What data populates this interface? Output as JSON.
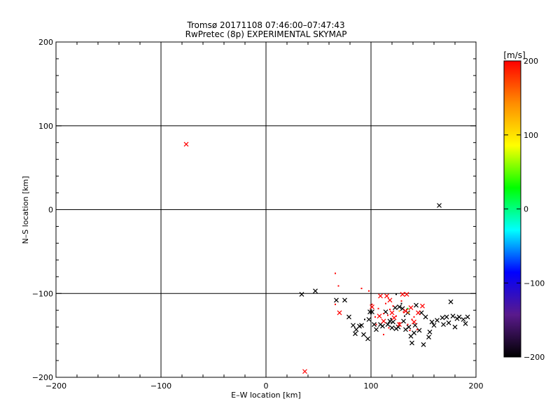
{
  "chart_data": {
    "type": "scatter",
    "title": "Tromsø 20171108 07:46:00–07:47:43",
    "subtitle": "RwPretec (8p) EXPERIMENTAL SKYMAP",
    "xlabel": "E–W location [km]",
    "ylabel": "N–S location [km]",
    "xlim": [
      -200,
      200
    ],
    "ylim": [
      -200,
      200
    ],
    "x_ticks": [
      -200,
      -100,
      0,
      100,
      200
    ],
    "y_ticks": [
      -200,
      -100,
      0,
      100,
      200
    ],
    "x_tick_labels": [
      "−200",
      "−100",
      "0",
      "100",
      "200"
    ],
    "y_tick_labels": [
      "−200",
      "−100",
      "0",
      "100",
      "200"
    ],
    "grid": true,
    "colorbar": {
      "label": "[m/s]",
      "range": [
        -200,
        200
      ],
      "ticks": [
        200,
        100,
        0,
        -100,
        -200
      ],
      "tick_labels": [
        "200",
        "100",
        "0",
        "−100",
        "−200"
      ],
      "colors": [
        "#000000",
        "#5a1a8c",
        "#0000ff",
        "#00ffff",
        "#00ff00",
        "#ffff00",
        "#ff8c00",
        "#ff0000"
      ]
    },
    "series": [
      {
        "marker": "x",
        "color": "#000000",
        "points": [
          [
            165,
            5
          ],
          [
            34,
            -101
          ],
          [
            47,
            -97
          ],
          [
            67,
            -108
          ],
          [
            75,
            -108
          ],
          [
            79,
            -128
          ],
          [
            83,
            -138
          ],
          [
            85,
            -148
          ],
          [
            86,
            -143
          ],
          [
            89,
            -139
          ],
          [
            91,
            -138
          ],
          [
            93,
            -149
          ],
          [
            97,
            -154
          ],
          [
            98,
            -131
          ],
          [
            99,
            -122
          ],
          [
            101,
            -122
          ],
          [
            103,
            -137
          ],
          [
            105,
            -143
          ],
          [
            109,
            -137
          ],
          [
            111,
            -139
          ],
          [
            114,
            -122
          ],
          [
            116,
            -137
          ],
          [
            118,
            -133
          ],
          [
            120,
            -141
          ],
          [
            121,
            -134
          ],
          [
            123,
            -117
          ],
          [
            124,
            -142
          ],
          [
            126,
            -140
          ],
          [
            127,
            -116
          ],
          [
            130,
            -118
          ],
          [
            131,
            -133
          ],
          [
            133,
            -143
          ],
          [
            135,
            -123
          ],
          [
            136,
            -140
          ],
          [
            138,
            -151
          ],
          [
            139,
            -159
          ],
          [
            141,
            -147
          ],
          [
            142,
            -138
          ],
          [
            143,
            -114
          ],
          [
            146,
            -144
          ],
          [
            148,
            -123
          ],
          [
            150,
            -161
          ],
          [
            152,
            -128
          ],
          [
            155,
            -152
          ],
          [
            156,
            -146
          ],
          [
            158,
            -134
          ],
          [
            160,
            -138
          ],
          [
            163,
            -132
          ],
          [
            168,
            -129
          ],
          [
            169,
            -137
          ],
          [
            172,
            -128
          ],
          [
            174,
            -135
          ],
          [
            176,
            -110
          ],
          [
            178,
            -127
          ],
          [
            180,
            -140
          ],
          [
            182,
            -130
          ],
          [
            184,
            -128
          ],
          [
            188,
            -131
          ],
          [
            190,
            -136
          ],
          [
            192,
            -128
          ]
        ]
      },
      {
        "marker": "x",
        "color": "#ff0000",
        "points": [
          [
            -76,
            78
          ],
          [
            70,
            -123
          ],
          [
            101,
            -116
          ],
          [
            108,
            -127
          ],
          [
            109,
            -103
          ],
          [
            112,
            -133
          ],
          [
            115,
            -103
          ],
          [
            118,
            -108
          ],
          [
            120,
            -123
          ],
          [
            122,
            -129
          ],
          [
            127,
            -137
          ],
          [
            130,
            -101
          ],
          [
            133,
            -121
          ],
          [
            134,
            -101
          ],
          [
            138,
            -117
          ],
          [
            141,
            -134
          ],
          [
            145,
            -123
          ],
          [
            149,
            -115
          ],
          [
            37,
            -193
          ]
        ]
      },
      {
        "marker": "dot",
        "color": "#ff0000",
        "points": [
          [
            66,
            -76
          ],
          [
            69,
            -91
          ],
          [
            66,
            -113
          ],
          [
            91,
            -94
          ],
          [
            98,
            -97
          ],
          [
            101,
            -113
          ],
          [
            104,
            -128
          ],
          [
            107,
            -118
          ],
          [
            112,
            -124
          ],
          [
            114,
            -112
          ],
          [
            116,
            -126
          ],
          [
            118,
            -119
          ],
          [
            121,
            -115
          ],
          [
            124,
            -127
          ],
          [
            127,
            -135
          ],
          [
            129,
            -109
          ],
          [
            131,
            -122
          ],
          [
            134,
            -119
          ],
          [
            135,
            -137
          ],
          [
            137,
            -144
          ],
          [
            139,
            -131
          ],
          [
            141,
            -128
          ],
          [
            144,
            -143
          ],
          [
            112,
            -149
          ],
          [
            105,
            -137
          ],
          [
            117,
            -141
          ]
        ]
      },
      {
        "marker": "dot",
        "color": "#ffa500",
        "points": [
          [
            127,
            -121
          ],
          [
            136,
            -123
          ]
        ]
      },
      {
        "marker": "dot",
        "color": "#00c000",
        "points": [
          [
            135,
            -118
          ]
        ]
      },
      {
        "marker": "dot",
        "color": "#000000",
        "points": [
          [
            124,
            -101
          ],
          [
            129,
            -112
          ],
          [
            94,
            -131
          ],
          [
            119,
            -130
          ],
          [
            132,
            -127
          ]
        ]
      }
    ]
  }
}
